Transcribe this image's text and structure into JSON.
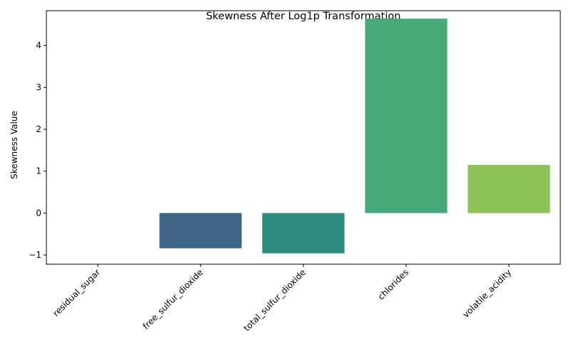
{
  "chart_data": {
    "type": "bar",
    "title": "Skewness After Log1p Transformation",
    "xlabel": "",
    "ylabel": "Skewness Value",
    "categories": [
      "residual_sugar",
      "free_sulfur_dioxide",
      "total_sulfur_dioxide",
      "chlorides",
      "volatile_acidity"
    ],
    "values": [
      0.0,
      -0.84,
      -0.96,
      4.64,
      1.15
    ],
    "colors": [
      "#46337e",
      "#3e6586",
      "#2d8a7e",
      "#46a977",
      "#8dc356"
    ],
    "ylim": [
      -1.22,
      4.83
    ],
    "yticks": [
      -1,
      0,
      1,
      2,
      3,
      4
    ],
    "ytick_labels": [
      "−1",
      "0",
      "1",
      "2",
      "3",
      "4"
    ],
    "grid": false,
    "legend": "none"
  }
}
